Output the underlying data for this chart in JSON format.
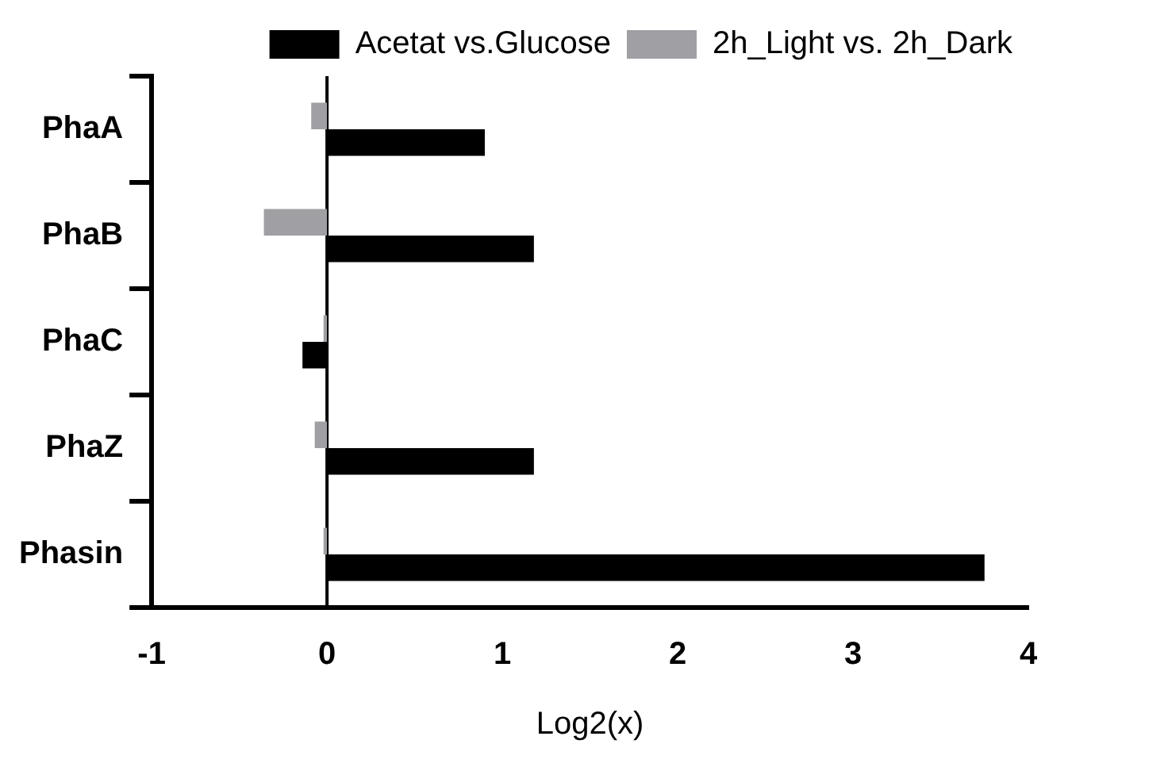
{
  "chart_data": {
    "type": "bar",
    "orientation": "horizontal",
    "xlabel": "Log2(x)",
    "categories": [
      "PhaA",
      "PhaB",
      "PhaC",
      "PhaZ",
      "Phasin"
    ],
    "series": [
      {
        "name": "Acetat vs.Glucose",
        "color": "#000000",
        "values": [
          0.9,
          1.18,
          -0.14,
          1.18,
          3.75
        ]
      },
      {
        "name": "2h_Light vs. 2h_Dark",
        "color": "#a0a0a4",
        "values": [
          -0.09,
          -0.36,
          -0.02,
          -0.07,
          -0.02
        ]
      }
    ],
    "xlim": [
      -1,
      4
    ],
    "xticks": [
      -1,
      0,
      1,
      2,
      3,
      4
    ],
    "grid": false,
    "legend": "top right",
    "ref_lines": [
      {
        "axis": "x",
        "value": 0,
        "color": "#000000"
      }
    ]
  }
}
